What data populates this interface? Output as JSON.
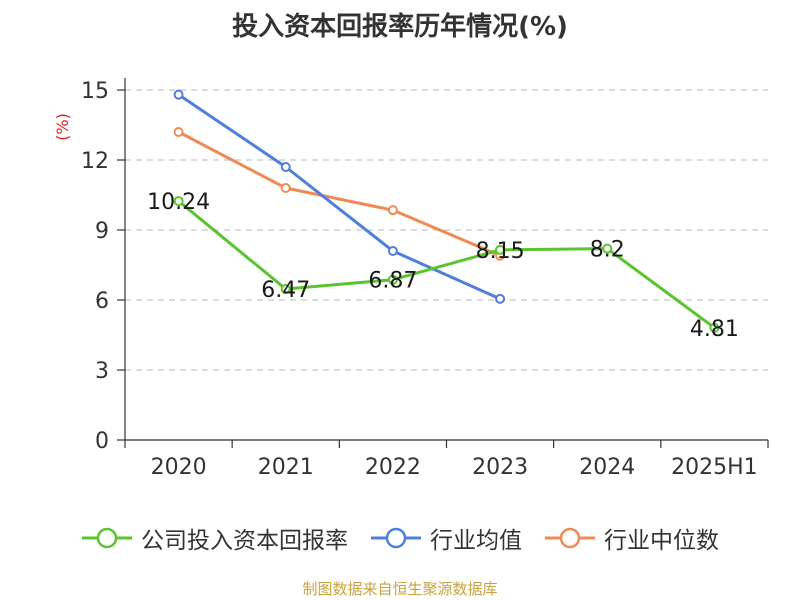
{
  "source_note": "制图数据来自恒生聚源数据库",
  "chart_data": {
    "type": "line",
    "title": "投入资本回报率历年情况(%)",
    "ylabel": "(%)",
    "xlabel": "",
    "categories": [
      "2020",
      "2021",
      "2022",
      "2023",
      "2024",
      "2025H1"
    ],
    "ylim": [
      0,
      15
    ],
    "yticks": [
      0,
      3,
      6,
      9,
      12,
      15
    ],
    "grid": true,
    "legend_position": "bottom",
    "series": [
      {
        "name": "公司投入资本回报率",
        "color": "#5ac42e",
        "values": [
          10.24,
          6.47,
          6.87,
          8.15,
          8.2,
          4.81
        ],
        "labels": [
          "10.24",
          "6.47",
          "6.87",
          "8.15",
          "8.2",
          "4.81"
        ]
      },
      {
        "name": "行业均值",
        "color": "#4f7fdc",
        "values": [
          14.8,
          11.7,
          8.1,
          6.05,
          null,
          null
        ]
      },
      {
        "name": "行业中位数",
        "color": "#f08a55",
        "values": [
          13.2,
          10.8,
          9.85,
          7.9,
          null,
          null
        ]
      }
    ]
  }
}
